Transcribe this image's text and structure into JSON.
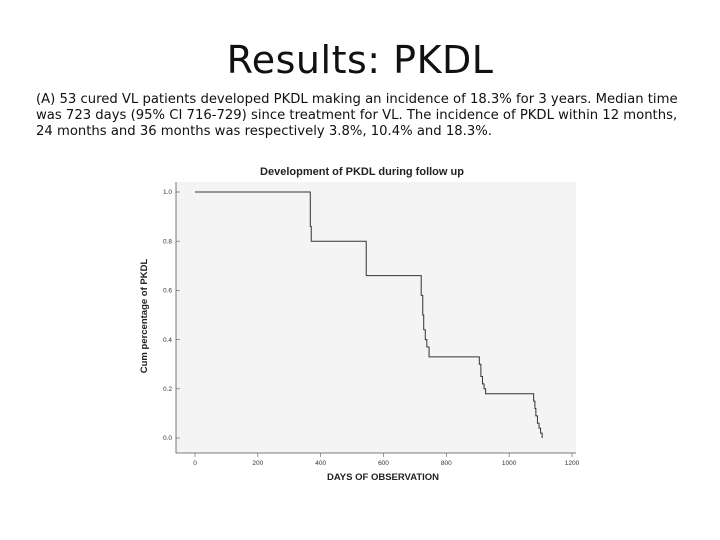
{
  "slide": {
    "title": "Results: PKDL",
    "body": "(A) 53 cured VL patients developed PKDL making an incidence of 18.3% for 3 years.  Median time was 723 days (95% CI 716-729) since treatment for VL. The incidence of PKDL within 12 months, 24 months and 36 months was respectively 3.8%, 10.4% and 18.3%."
  },
  "chart_data": {
    "type": "line",
    "title": "Development of PKDL during follow up",
    "xlabel": "DAYS OF OBSERVATION",
    "ylabel": "Cum percentage of PKDL",
    "xlim": [
      0,
      1200
    ],
    "ylim": [
      0,
      1.0
    ],
    "x_ticks": [
      "0",
      "200",
      "400",
      "600",
      "800",
      "1000",
      "1200"
    ],
    "y_ticks": [
      "0.0",
      "0.2",
      "0.4",
      "0.6",
      "0.8",
      "1.0"
    ],
    "grid": false,
    "colors": {
      "plot_background": "#f4f4f4",
      "line": "#333333",
      "axis": "#555555"
    },
    "series": [
      {
        "step": true,
        "points": [
          [
            0,
            1.0
          ],
          [
            365,
            1.0
          ],
          [
            367,
            0.86
          ],
          [
            370,
            0.8
          ],
          [
            540,
            0.8
          ],
          [
            545,
            0.66
          ],
          [
            718,
            0.66
          ],
          [
            720,
            0.58
          ],
          [
            725,
            0.5
          ],
          [
            728,
            0.44
          ],
          [
            733,
            0.4
          ],
          [
            738,
            0.37
          ],
          [
            745,
            0.33
          ],
          [
            900,
            0.33
          ],
          [
            905,
            0.3
          ],
          [
            910,
            0.25
          ],
          [
            915,
            0.22
          ],
          [
            920,
            0.2
          ],
          [
            925,
            0.18
          ],
          [
            1075,
            0.18
          ],
          [
            1078,
            0.15
          ],
          [
            1082,
            0.12
          ],
          [
            1085,
            0.09
          ],
          [
            1090,
            0.06
          ],
          [
            1095,
            0.04
          ],
          [
            1100,
            0.02
          ],
          [
            1105,
            0.0
          ]
        ]
      }
    ]
  }
}
